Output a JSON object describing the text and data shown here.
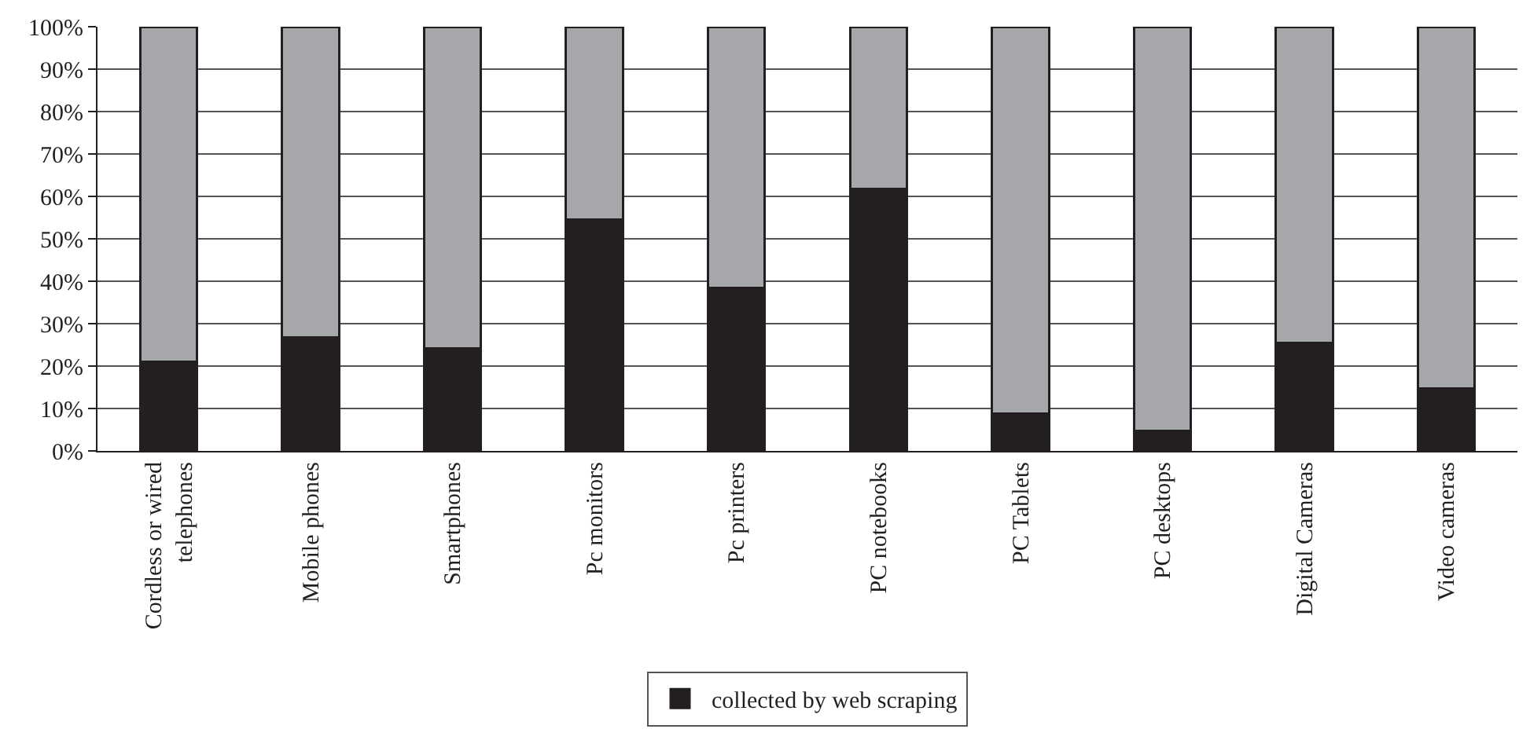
{
  "chart_data": {
    "type": "bar",
    "stacked": true,
    "categories": [
      "Cordless or wired telephones",
      "Mobile phones",
      "Smartphones",
      "Pc monitors",
      "Pc printers",
      "PC notebooks",
      "PC Tablets",
      "PC desktops",
      "Digital Cameras",
      "Video cameras"
    ],
    "series": [
      {
        "name": "collected by web scraping",
        "color": "#231f20",
        "values": [
          21.0,
          26.7,
          24.2,
          54.6,
          38.5,
          61.8,
          8.8,
          4.8,
          25.5,
          14.7
        ]
      },
      {
        "color": "#a6a7aa",
        "values": [
          79.0,
          73.3,
          75.8,
          45.4,
          61.5,
          38.2,
          91.2,
          95.2,
          74.5,
          85.3
        ]
      }
    ],
    "ylim": [
      0,
      100
    ],
    "yticks": [
      {
        "value": 0,
        "label": "0%"
      },
      {
        "value": 10,
        "label": "10%"
      },
      {
        "value": 20,
        "label": "20%"
      },
      {
        "value": 30,
        "label": "30%"
      },
      {
        "value": 40,
        "label": "40%"
      },
      {
        "value": 50,
        "label": "50%"
      },
      {
        "value": 60,
        "label": "60%"
      },
      {
        "value": 70,
        "label": "70%"
      },
      {
        "value": 80,
        "label": "80%"
      },
      {
        "value": 90,
        "label": "90%"
      },
      {
        "value": 100,
        "label": "100%"
      }
    ],
    "grid": "y",
    "legend": "bottom"
  }
}
